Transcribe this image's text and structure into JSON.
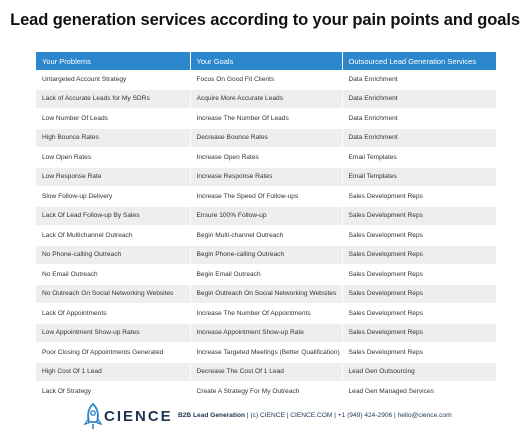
{
  "title": "Lead generation services according to your pain points and goals",
  "table": {
    "headers": [
      "Your Problems",
      "Your Goals",
      "Outsourced Lead Generation Services"
    ],
    "rows": [
      [
        "Untargeted Account Strategy",
        "Focus On Good Fit Clients",
        "Data Enrichment"
      ],
      [
        "Lack of Accurate Leads for My SDRs",
        "Acquire More Accurate Leads",
        "Data Enrichment"
      ],
      [
        "Low Number Of Leads",
        "Increase The Number Of Leads",
        "Data Enrichment"
      ],
      [
        "High Bounce Rates",
        "Decrease Bounce Rates",
        "Data Enrichment"
      ],
      [
        "Low Open Rates",
        "Increase Open Rates",
        "Email Templates"
      ],
      [
        "Low Response Rate",
        "Increase Response Rates",
        "Email Templates"
      ],
      [
        "Slow Follow-up Delivery",
        "Increase The Speed Of Follow-ups",
        "Sales Development Reps"
      ],
      [
        "Lack Of Lead Follow-up By Sales",
        "Ensure 100% Follow-up",
        "Sales Development Reps"
      ],
      [
        "Lack Of Multichannel Outreach",
        "Begin Multi-channel Outreach",
        "Sales Development Reps"
      ],
      [
        "No Phone-calling Outreach",
        "Begin Phone-calling Outreach",
        "Sales Development Reps"
      ],
      [
        "No Email Outreach",
        "Begin Email Outreach",
        "Sales Development Reps"
      ],
      [
        "No Outreach On Social Networking Websites",
        "Begin Outreach On Social Networking Websites",
        "Sales Development Reps"
      ],
      [
        "Lack Of Appointments",
        "Increase The Number Of Appointments",
        "Sales Development Reps"
      ],
      [
        "Low Appointment Show-up Rates",
        "Increase Appointment Show-up Rate",
        "Sales Development Reps"
      ],
      [
        "Poor Closing Of Appointments Generated",
        "Increase Targeted Meetings (Better Qualification)",
        "Sales Development Reps"
      ],
      [
        "High Cost Of 1 Lead",
        "Decrease The Cost Of 1 Lead",
        "Lead Gen Outsourcing"
      ],
      [
        "Lack Of Strategy",
        "Create A Strategy For My Outreach",
        "Lead Gen Managed Services"
      ]
    ]
  },
  "footer": {
    "logo": "CIENCE",
    "tagline": "B2B Lead Generation",
    "details": "| (c) CIENCE | CIENCE.COM | +1 (949) 424-2906 | hello@cience.com"
  }
}
